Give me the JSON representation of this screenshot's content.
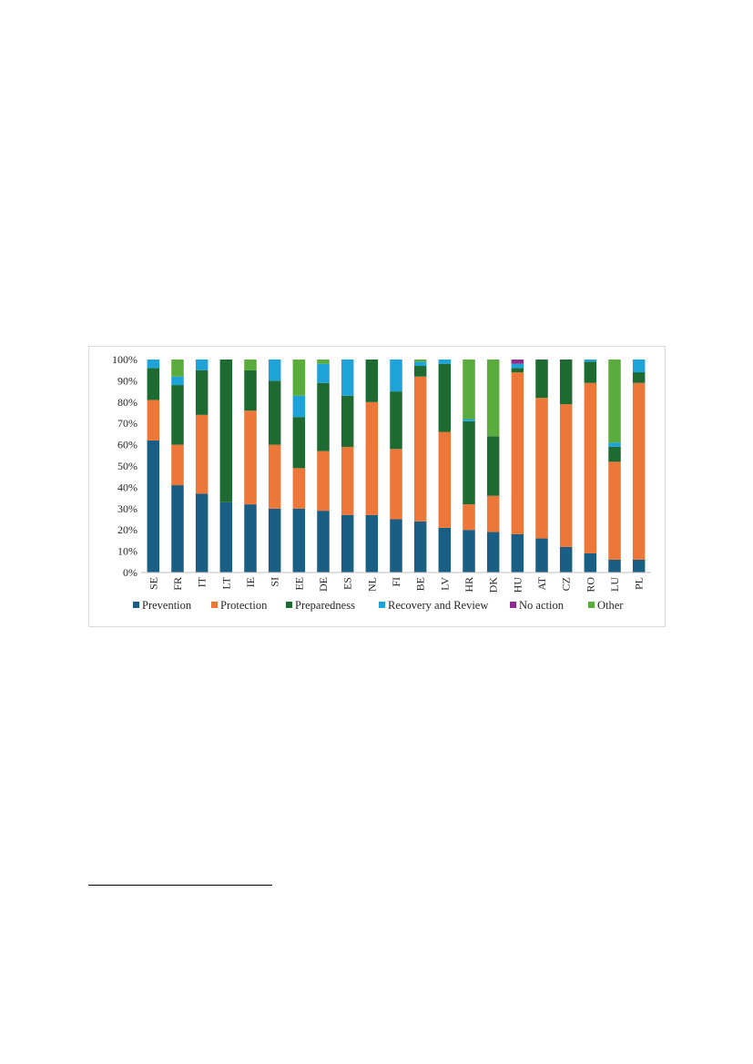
{
  "chart_data": {
    "type": "bar",
    "stacked": true,
    "ylim": [
      0,
      100
    ],
    "yticks": [
      0,
      10,
      20,
      30,
      40,
      50,
      60,
      70,
      80,
      90,
      100
    ],
    "ytick_labels": [
      "0%",
      "10%",
      "20%",
      "30%",
      "40%",
      "50%",
      "60%",
      "70%",
      "80%",
      "90%",
      "100%"
    ],
    "grid": false,
    "legend_position": "bottom",
    "categories": [
      "SE",
      "FR",
      "IT",
      "LT",
      "IE",
      "SI",
      "EE",
      "DE",
      "ES",
      "NL",
      "FI",
      "BE",
      "LV",
      "HR",
      "DK",
      "HU",
      "AT",
      "CZ",
      "RO",
      "LU",
      "PL"
    ],
    "series": [
      {
        "name": "Prevention",
        "color": "#1b5e83",
        "values": [
          62,
          41,
          37,
          33,
          32,
          30,
          30,
          29,
          27,
          27,
          25,
          24,
          21,
          20,
          19,
          18,
          16,
          12,
          9,
          6,
          6
        ]
      },
      {
        "name": "Protection",
        "color": "#ed7739",
        "values": [
          19,
          19,
          37,
          0,
          44,
          30,
          19,
          28,
          32,
          53,
          33,
          68,
          45,
          12,
          17,
          76,
          66,
          67,
          80,
          46,
          83
        ]
      },
      {
        "name": "Preparedness",
        "color": "#1d6b31",
        "values": [
          15,
          28,
          21,
          67,
          19,
          30,
          24,
          32,
          24,
          20,
          27,
          5,
          32,
          39,
          28,
          2,
          18,
          21,
          10,
          7,
          5
        ]
      },
      {
        "name": "Recovery and Review",
        "color": "#1ea3d8",
        "values": [
          4,
          4,
          5,
          0,
          0,
          10,
          10,
          9,
          17,
          0,
          15,
          2,
          2,
          1,
          0,
          2,
          0,
          0,
          1,
          2,
          6
        ]
      },
      {
        "name": "No action",
        "color": "#8e2d90",
        "values": [
          0,
          0,
          0,
          0,
          0,
          0,
          0,
          0,
          0,
          0,
          0,
          0,
          0,
          0,
          0,
          2,
          0,
          0,
          0,
          0,
          0
        ]
      },
      {
        "name": "Other",
        "color": "#5aac3c",
        "values": [
          0,
          8,
          0,
          0,
          5,
          0,
          17,
          2,
          0,
          0,
          0,
          1,
          0,
          28,
          36,
          0,
          0,
          0,
          0,
          39,
          0
        ]
      }
    ]
  }
}
